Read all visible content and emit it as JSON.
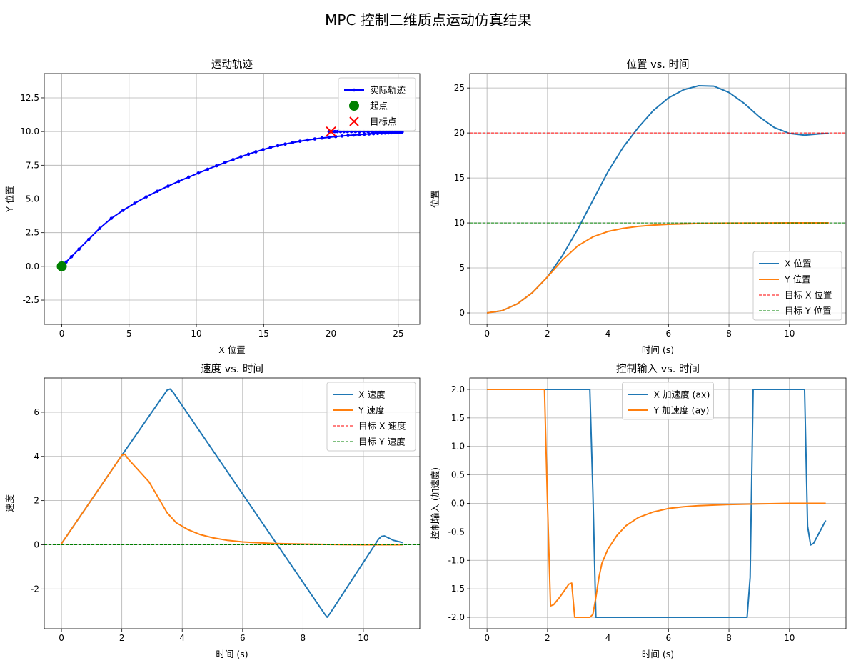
{
  "suptitle": "MPC 控制二维质点运动仿真结果",
  "chart_data": [
    {
      "id": "traj",
      "type": "line",
      "title": "运动轨迹",
      "xlabel": "X 位置",
      "ylabel": "Y 位置",
      "xlim": [
        -1.3,
        26.6
      ],
      "ylim": [
        -4.3,
        14.3
      ],
      "xticks": [
        0,
        5,
        10,
        15,
        20,
        25
      ],
      "yticks": [
        -2.5,
        0.0,
        2.5,
        5.0,
        7.5,
        10.0,
        12.5
      ],
      "tick_decimals": 1,
      "grid": true,
      "legend": "upper-right",
      "series": [
        {
          "name": "实际轨迹",
          "color": "#0000ff",
          "marker": "dot",
          "width": 2,
          "x": [
            0,
            0.08,
            0.32,
            0.72,
            1.28,
            2.0,
            2.82,
            3.68,
            4.55,
            5.42,
            6.27,
            7.1,
            7.9,
            8.68,
            9.43,
            10.15,
            10.84,
            11.5,
            12.13,
            12.73,
            13.31,
            13.87,
            14.42,
            14.96,
            15.5,
            16.05,
            16.6,
            17.15,
            17.7,
            18.25,
            18.8,
            19.33,
            19.85,
            20.35,
            20.82,
            21.27,
            21.7,
            22.1,
            22.48,
            22.83,
            23.16,
            23.47,
            23.76,
            24.03,
            24.27,
            24.49,
            24.68,
            24.85,
            24.99,
            25.1,
            25.19,
            25.25,
            25.28,
            25.29,
            25.27,
            25.22,
            25.14,
            25.04,
            24.9,
            24.74,
            24.56,
            24.35,
            24.12,
            23.88,
            23.62,
            23.34,
            23.05,
            22.75,
            22.44,
            22.13,
            21.82,
            21.52,
            21.23,
            20.96,
            20.71,
            20.48,
            20.28,
            20.12,
            20.0,
            19.92,
            19.87,
            19.86,
            19.89,
            19.94,
            19.98,
            19.99
          ],
          "y": [
            0,
            0.08,
            0.32,
            0.72,
            1.28,
            2.0,
            2.82,
            3.56,
            4.15,
            4.68,
            5.15,
            5.57,
            5.95,
            6.3,
            6.62,
            6.92,
            7.2,
            7.46,
            7.7,
            7.92,
            8.13,
            8.32,
            8.5,
            8.66,
            8.81,
            8.95,
            9.07,
            9.18,
            9.28,
            9.37,
            9.45,
            9.52,
            9.58,
            9.63,
            9.67,
            9.71,
            9.74,
            9.77,
            9.8,
            9.82,
            9.84,
            9.86,
            9.88,
            9.89,
            9.9,
            9.91,
            9.92,
            9.93,
            9.94,
            9.95,
            9.955,
            9.96,
            9.965,
            9.97,
            9.975,
            9.98,
            9.983,
            9.986,
            9.988,
            9.99,
            9.992,
            9.993,
            9.994,
            9.995,
            9.996,
            9.997,
            9.997,
            9.998,
            9.998,
            9.998,
            9.999,
            9.999,
            9.999,
            9.999,
            9.999,
            10,
            10,
            10,
            10,
            10,
            10,
            10,
            10,
            10,
            10,
            10
          ]
        },
        {
          "name": "起点",
          "color": "#008000",
          "marker": "big-dot",
          "points": [
            [
              0,
              0
            ]
          ]
        },
        {
          "name": "目标点",
          "color": "#ff0000",
          "marker": "x",
          "points": [
            [
              20,
              10
            ]
          ]
        }
      ]
    },
    {
      "id": "pos",
      "type": "line",
      "title": "位置 vs. 时间",
      "xlabel": "时间 (s)",
      "ylabel": "位置",
      "xlim": [
        -0.57,
        11.87
      ],
      "ylim": [
        -1.27,
        26.6
      ],
      "xticks": [
        0,
        2,
        4,
        6,
        8,
        10
      ],
      "yticks": [
        0,
        5,
        10,
        15,
        20,
        25
      ],
      "tick_decimals": 0,
      "grid": true,
      "legend": "lower-right",
      "series": [
        {
          "name": "X 位置",
          "color": "#1f77b4",
          "width": 2,
          "x": [
            0,
            0.5,
            1,
            1.5,
            2,
            2.5,
            3,
            3.5,
            4,
            4.5,
            5,
            5.5,
            6,
            6.5,
            7,
            7.5,
            8,
            8.5,
            9,
            9.5,
            10,
            10.5,
            11,
            11.3
          ],
          "y": [
            0,
            0.25,
            1,
            2.25,
            4,
            6.4,
            9.3,
            12.5,
            15.7,
            18.4,
            20.6,
            22.5,
            23.9,
            24.8,
            25.25,
            25.2,
            24.5,
            23.3,
            21.8,
            20.6,
            19.95,
            19.75,
            19.9,
            19.95
          ]
        },
        {
          "name": "Y 位置",
          "color": "#ff7f0e",
          "width": 2,
          "x": [
            0,
            0.5,
            1,
            1.5,
            2,
            2.5,
            3,
            3.5,
            4,
            4.5,
            5,
            5.5,
            6,
            7,
            8,
            9,
            10,
            11,
            11.3
          ],
          "y": [
            0,
            0.25,
            1,
            2.25,
            4,
            5.9,
            7.45,
            8.45,
            9.05,
            9.4,
            9.62,
            9.76,
            9.85,
            9.94,
            9.98,
            9.99,
            10,
            10,
            10
          ]
        },
        {
          "name": "目标 X 位置",
          "color": "#ff0000",
          "dashed": true,
          "hline": 20
        },
        {
          "name": "目标 Y 位置",
          "color": "#008000",
          "dashed": true,
          "hline": 10
        }
      ]
    },
    {
      "id": "vel",
      "type": "line",
      "title": "速度 vs. 时间",
      "xlabel": "时间 (s)",
      "ylabel": "速度",
      "xlim": [
        -0.57,
        11.87
      ],
      "ylim": [
        -3.8,
        7.55
      ],
      "xticks": [
        0,
        2,
        4,
        6,
        8,
        10
      ],
      "yticks": [
        -2,
        0,
        2,
        4,
        6
      ],
      "tick_decimals": 0,
      "grid": true,
      "legend": "upper-right",
      "series": [
        {
          "name": "X 速度",
          "color": "#1f77b4",
          "width": 2,
          "x": [
            0,
            2,
            3.5,
            3.6,
            3.7,
            8.7,
            8.8,
            8.9,
            10.5,
            10.6,
            10.7,
            10.8,
            11,
            11.3
          ],
          "y": [
            0.05,
            4.05,
            7.0,
            7.05,
            6.9,
            -3.1,
            -3.28,
            -3.1,
            0.25,
            0.38,
            0.4,
            0.33,
            0.2,
            0.1
          ]
        },
        {
          "name": "Y 速度",
          "color": "#ff7f0e",
          "width": 2,
          "x": [
            0,
            2.0,
            2.1,
            2.2,
            2.5,
            2.9,
            3.2,
            3.5,
            3.8,
            4.2,
            4.6,
            5,
            5.5,
            6,
            7,
            8,
            9,
            10,
            11.3
          ],
          "y": [
            0.05,
            4.05,
            4.1,
            3.9,
            3.45,
            2.85,
            2.15,
            1.45,
            1.0,
            0.68,
            0.46,
            0.32,
            0.2,
            0.13,
            0.06,
            0.03,
            0.01,
            0.0,
            0.0
          ]
        },
        {
          "name": "目标 X 速度",
          "color": "#ff0000",
          "dashed": true,
          "hline": 0
        },
        {
          "name": "目标 Y 速度",
          "color": "#008000",
          "dashed": true,
          "hline": 0
        }
      ]
    },
    {
      "id": "ctrl",
      "type": "line",
      "title": "控制输入 vs. 时间",
      "xlabel": "时间 (s)",
      "ylabel": "控制输入 (加速度)",
      "xlim": [
        -0.57,
        11.87
      ],
      "ylim": [
        -2.2,
        2.2
      ],
      "xticks": [
        0,
        2,
        4,
        6,
        8,
        10
      ],
      "yticks": [
        -2.0,
        -1.5,
        -1.0,
        -0.5,
        0.0,
        0.5,
        1.0,
        1.5,
        2.0
      ],
      "tick_decimals": 1,
      "grid": true,
      "legend": "upper-center",
      "series": [
        {
          "name": "X 加速度 (ax)",
          "color": "#1f77b4",
          "width": 2,
          "x": [
            0,
            3.4,
            3.5,
            3.6,
            8.6,
            8.7,
            8.8,
            10.5,
            10.6,
            10.7,
            10.8,
            11,
            11.2
          ],
          "y": [
            2,
            2,
            0.2,
            -2,
            -2,
            -1.3,
            2,
            2,
            -0.4,
            -0.73,
            -0.7,
            -0.5,
            -0.3
          ]
        },
        {
          "name": "Y 加速度 (ay)",
          "color": "#ff7f0e",
          "width": 2,
          "x": [
            0,
            1.9,
            2.0,
            2.1,
            2.2,
            2.4,
            2.6,
            2.7,
            2.8,
            2.9,
            3.0,
            3.1,
            3.2,
            3.3,
            3.4,
            3.5,
            3.6,
            3.7,
            3.8,
            4.0,
            4.3,
            4.6,
            5,
            5.5,
            6,
            6.5,
            7,
            8,
            9,
            10,
            11.2
          ],
          "y": [
            2,
            2,
            0,
            -1.8,
            -1.78,
            -1.65,
            -1.5,
            -1.42,
            -1.4,
            -2.0,
            -2.0,
            -2.0,
            -2.0,
            -2.0,
            -2.0,
            -1.95,
            -1.65,
            -1.3,
            -1.05,
            -0.8,
            -0.56,
            -0.39,
            -0.25,
            -0.15,
            -0.09,
            -0.06,
            -0.04,
            -0.02,
            -0.01,
            0.0,
            0.0
          ]
        }
      ]
    }
  ]
}
